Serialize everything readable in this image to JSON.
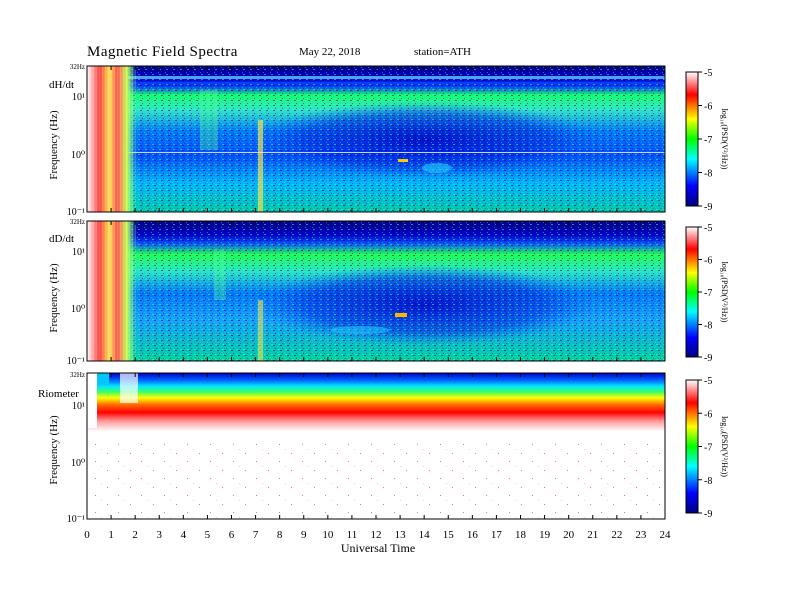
{
  "header": {
    "title": "Magnetic  Field  Spectra",
    "date": "May 22, 2018",
    "station": "station=ATH"
  },
  "colorbar": {
    "label": "log₁₀(PSD(V²/Hz))",
    "ticks": [
      "-5",
      "-6",
      "-7",
      "-8",
      "-9"
    ],
    "stops": [
      "#ffffff",
      "#ff0000",
      "#ffff00",
      "#00ff00",
      "#00ffff",
      "#0000ff",
      "#00007f"
    ]
  },
  "x_axis": {
    "label": "Universal Time",
    "ticks": [
      "0",
      "1",
      "2",
      "3",
      "4",
      "5",
      "6",
      "7",
      "8",
      "9",
      "10",
      "11",
      "12",
      "13",
      "14",
      "15",
      "16",
      "17",
      "18",
      "19",
      "20",
      "21",
      "22",
      "23",
      "24"
    ]
  },
  "chart_data": [
    {
      "type": "heatmap",
      "panel_label": "dH/dt",
      "ylabel": "Frequency  (Hz)",
      "y_ticks": [
        "32Hz",
        "10¹",
        "10⁰",
        "10⁻¹"
      ],
      "y_range_hz": [
        0.1,
        32
      ],
      "x_range_hours": [
        0,
        24
      ],
      "z_range_log_psd": [
        -9,
        -5
      ],
      "features": [
        {
          "x_hours": [
            0,
            1.9
          ],
          "note": "broadband high power"
        },
        {
          "x_hours": [
            7.1,
            7.4
          ],
          "note": "vertical streak"
        },
        {
          "x_hours": [
            13.0,
            13.3
          ],
          "freq_hz": 0.8,
          "note": "narrowband spot"
        },
        {
          "freq_hz": 1.0,
          "note": "horizontal line"
        }
      ]
    },
    {
      "type": "heatmap",
      "panel_label": "dD/dt",
      "ylabel": "Frequency  (Hz)",
      "y_ticks": [
        "32Hz",
        "10¹",
        "10⁰",
        "10⁻¹"
      ],
      "y_range_hz": [
        0.1,
        32
      ],
      "x_range_hours": [
        0,
        24
      ],
      "z_range_log_psd": [
        -9,
        -5
      ],
      "features": [
        {
          "x_hours": [
            0,
            1.9
          ],
          "note": "broadband high power"
        },
        {
          "x_hours": [
            7.1,
            7.4
          ],
          "note": "vertical streak"
        },
        {
          "x_hours": [
            13.0,
            13.3
          ],
          "freq_hz": 0.8,
          "note": "narrowband spot"
        }
      ]
    },
    {
      "type": "heatmap",
      "panel_label": "Riometer",
      "ylabel": "Frequency  (Hz)",
      "y_ticks": [
        "32Hz",
        "10¹",
        "10⁰",
        "10⁻¹"
      ],
      "y_range_hz": [
        0.1,
        32
      ],
      "x_range_hours": [
        0,
        24
      ],
      "z_range_log_psd": [
        -9,
        -5
      ],
      "features": [
        {
          "freq_hz": [
            4,
            32
          ],
          "note": "high power band, blue at top to red"
        },
        {
          "freq_hz": [
            0.1,
            4
          ],
          "note": "low power (white) with sparse red dots"
        }
      ]
    }
  ]
}
